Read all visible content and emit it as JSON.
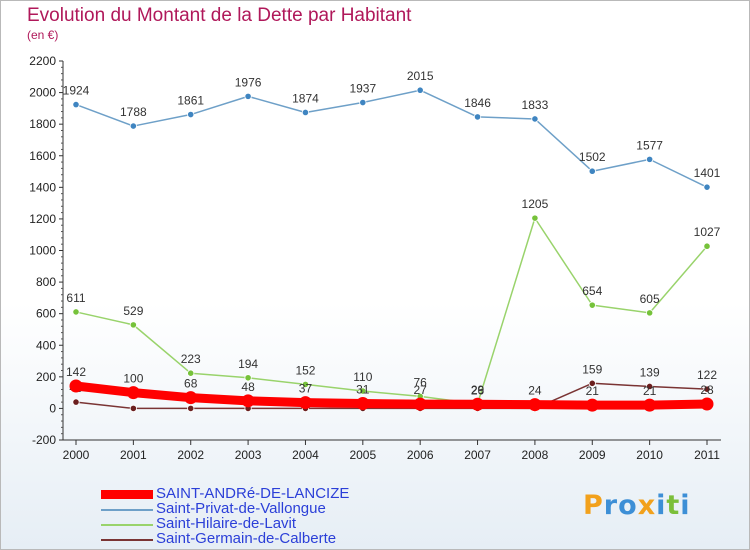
{
  "chart_data": {
    "type": "line",
    "title": "Evolution du Montant de la Dette par Habitant",
    "subtitle": "(en €)",
    "xlabel": "",
    "ylabel": "",
    "ylim": [
      -200,
      2200
    ],
    "yticks": [
      -200,
      0,
      200,
      400,
      600,
      800,
      1000,
      1200,
      1400,
      1600,
      1800,
      2000,
      2200
    ],
    "x": [
      "2000",
      "2001",
      "2002",
      "2003",
      "2004",
      "2005",
      "2006",
      "2007",
      "2008",
      "2009",
      "2010",
      "2011"
    ],
    "grid": false,
    "legend_position": "bottom-left",
    "series": [
      {
        "name": "Saint-Privat-de-Vallongue",
        "color": "#6ea0c8",
        "marker_color": "#3f85c1",
        "values": [
          1924,
          1788,
          1861,
          1976,
          1874,
          1937,
          2015,
          1846,
          1833,
          1502,
          1577,
          1401
        ],
        "labels": [
          "1924",
          "1788",
          "1861",
          "1976",
          "1874",
          "1937",
          "2015",
          "1846",
          "1833",
          "1502",
          "1577",
          "1401"
        ]
      },
      {
        "name": "Saint-Hilaire-de-Lavit",
        "color": "#99d36b",
        "marker_color": "#76c23a",
        "values": [
          611,
          529,
          223,
          194,
          152,
          110,
          76,
          29,
          1205,
          654,
          605,
          1027
        ],
        "labels": [
          "611",
          "529",
          "223",
          "194",
          "152",
          "110",
          "76",
          "29",
          "1205",
          "654",
          "605",
          "1027"
        ]
      },
      {
        "name": "Saint-Germain-de-Calberte",
        "color": "#7a3434",
        "marker_color": "#6b1f1f",
        "values": [
          40,
          0,
          0,
          0,
          0,
          0,
          0,
          0,
          0,
          159,
          139,
          122
        ],
        "labels": [
          "40",
          "",
          "",
          "",
          "",
          "",
          "",
          "",
          "",
          "159",
          "139",
          "122"
        ]
      },
      {
        "name": "SAINT-ANDRé-DE-LANCIZE",
        "color": "#ff0000",
        "marker_color": "#ff0000",
        "values": [
          142,
          100,
          68,
          48,
          37,
          31,
          27,
          26,
          24,
          21,
          21,
          28
        ],
        "labels": [
          "142",
          "100",
          "68",
          "48",
          "37",
          "31",
          "27",
          "26",
          "24",
          "21",
          "21",
          "28"
        ],
        "thick": true
      }
    ]
  },
  "legend": [
    {
      "label": "SAINT-ANDRé-DE-LANCIZE",
      "color": "#ff0000",
      "thick": true
    },
    {
      "label": "Saint-Privat-de-Vallongue",
      "color": "#6ea0c8",
      "thick": false
    },
    {
      "label": "Saint-Hilaire-de-Lavit",
      "color": "#99d36b",
      "thick": false
    },
    {
      "label": "Saint-Germain-de-Calberte",
      "color": "#7a3434",
      "thick": false
    }
  ],
  "logo": {
    "letters": [
      "P",
      "r",
      "o",
      "x",
      "i",
      "t",
      "i"
    ],
    "colors": [
      "#f2a11c",
      "#3d8fd6",
      "#3d8fd6",
      "#f2a11c",
      "#3d8fd6",
      "#7bbf3a",
      "#3d8fd6"
    ]
  }
}
